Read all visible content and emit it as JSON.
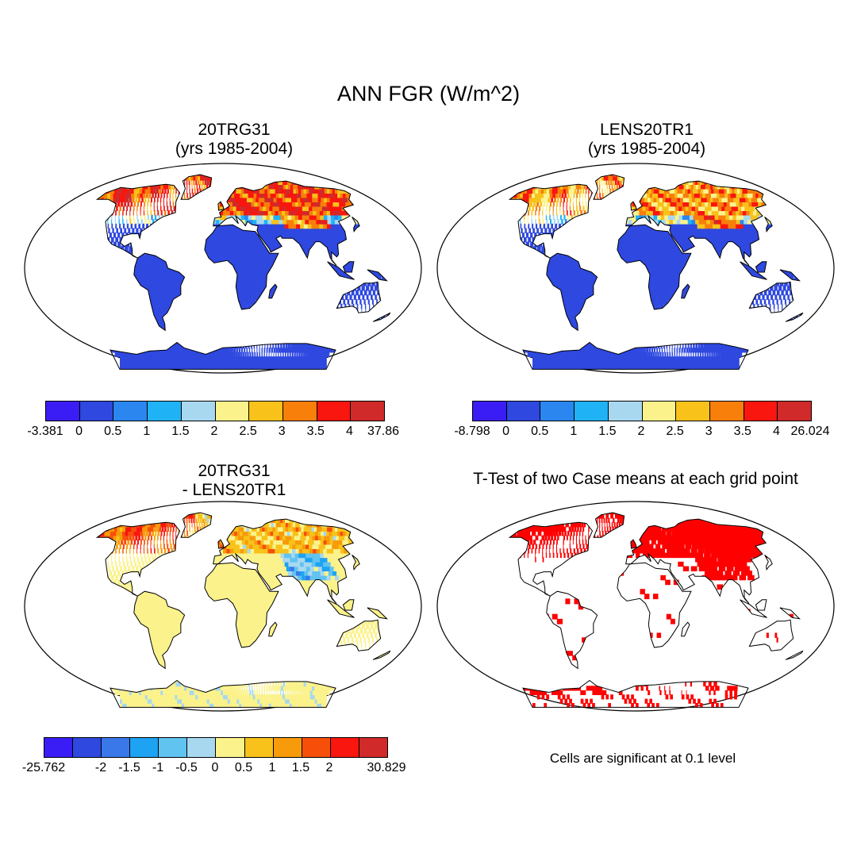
{
  "figure_title": "ANN FGR (W/m^2)",
  "panels": [
    {
      "title_line1": "20TRG31",
      "title_line2": "(yrs 1985-2004)",
      "colorbar": {
        "colors": [
          "#3a1df5",
          "#2e48e0",
          "#2b86ef",
          "#1fb3f5",
          "#a8d8f0",
          "#fbf28c",
          "#f8c21a",
          "#f77f0a",
          "#f8160f",
          "#d02a2a"
        ],
        "labels": [
          "-3.381",
          "0",
          "0.5",
          "1",
          "1.5",
          "2",
          "2.5",
          "3",
          "3.5",
          "4",
          "37.86"
        ]
      }
    },
    {
      "title_line1": "LENS20TR1",
      "title_line2": "(yrs 1985-2004)",
      "colorbar": {
        "colors": [
          "#3a1df5",
          "#2e48e0",
          "#2b86ef",
          "#1fb3f5",
          "#a8d8f0",
          "#fbf28c",
          "#f8c21a",
          "#f77f0a",
          "#f8160f",
          "#d02a2a"
        ],
        "labels": [
          "-8.798",
          "0",
          "0.5",
          "1",
          "1.5",
          "2",
          "2.5",
          "3",
          "3.5",
          "4",
          "26.024"
        ]
      }
    },
    {
      "title_line1": "20TRG31",
      "title_line2": "- LENS20TR1",
      "colorbar": {
        "colors": [
          "#3a1df5",
          "#2e48e0",
          "#3a78ea",
          "#1ea3f3",
          "#60c3f0",
          "#a8d8f0",
          "#fbf28c",
          "#f8c21a",
          "#f79b0a",
          "#f74f0a",
          "#f8160f",
          "#d02a2a"
        ],
        "labels": [
          "-25.762",
          "",
          "-2",
          "-1.5",
          "-1",
          "-0.5",
          "0",
          "0.5",
          "1",
          "1.5",
          "2",
          "",
          "30.829"
        ]
      }
    },
    {
      "title_line1": "T-Test of two Case means at each grid point",
      "significance_color": "#ff0000"
    }
  ],
  "significance_note": "Cells are significant at 0.1 level"
}
